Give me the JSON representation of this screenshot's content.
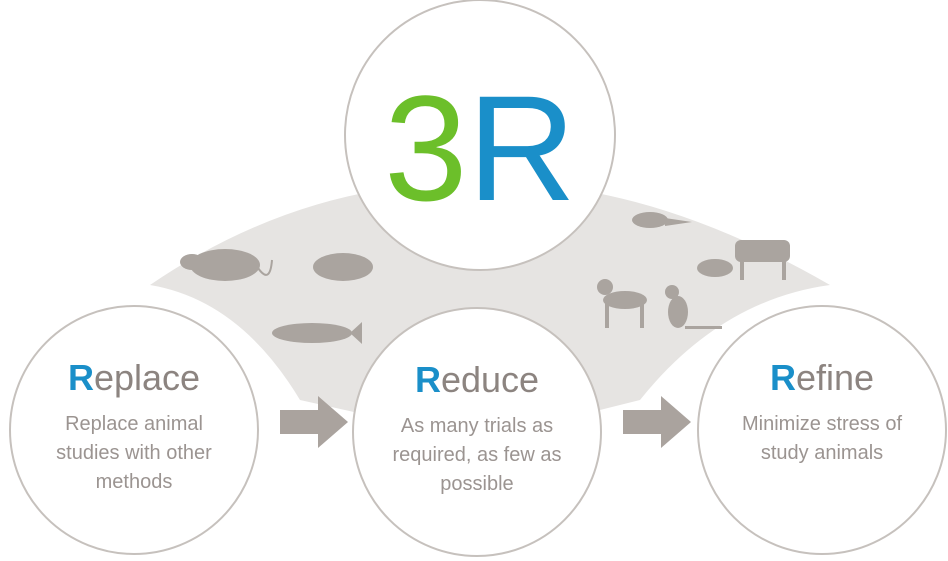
{
  "logo": {
    "digit": "3",
    "letter": "R"
  },
  "circles": [
    {
      "initial": "R",
      "rest": "eplace",
      "description": [
        "Replace animal",
        "studies with other",
        "methods"
      ]
    },
    {
      "initial": "R",
      "rest": "educe",
      "description": [
        "As many trials as",
        "required, as few as",
        "possible"
      ]
    },
    {
      "initial": "R",
      "rest": "efine",
      "description": [
        "Minimize stress of",
        "study animals"
      ]
    }
  ]
}
